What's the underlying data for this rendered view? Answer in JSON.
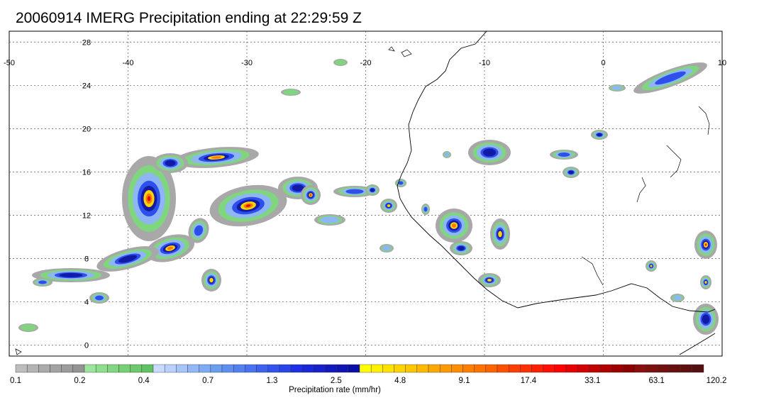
{
  "title": "20060914 IMERG Precipitation ending at 22:29:59 Z",
  "map": {
    "lon_ticks": [
      "-50",
      "-40",
      "-30",
      "-20",
      "-10",
      "0",
      "10"
    ],
    "lat_ticks": [
      "28",
      "24",
      "20",
      "16",
      "12",
      "8",
      "4",
      "0"
    ],
    "lon_values": [
      -50,
      -40,
      -30,
      -20,
      -10,
      0,
      10
    ],
    "lat_values": [
      28,
      24,
      20,
      16,
      12,
      8,
      4,
      0
    ],
    "lon_range": [
      -50,
      10
    ],
    "lat_range": [
      -1,
      29
    ],
    "grid": "dotted"
  },
  "colorbar": {
    "label": "Precipitation rate (mm/hr)",
    "tick_labels": [
      "0.1",
      "0.2",
      "0.4",
      "0.7",
      "1.3",
      "2.5",
      "4.8",
      "9.1",
      "17.4",
      "33.1",
      "63.1",
      "120.2"
    ],
    "groups": [
      {
        "colors": [
          "#bdbdbd",
          "#b4b4b4",
          "#ababab",
          "#a3a3a3",
          "#9c9c9c",
          "#949494"
        ]
      },
      {
        "colors": [
          "#9ce59c",
          "#8ddf8d",
          "#82d882",
          "#76d176",
          "#6cc96c",
          "#62c162"
        ]
      },
      {
        "colors": [
          "#c9dcff",
          "#b9d1ff",
          "#a6c5fb",
          "#93b8f7",
          "#7eabf3",
          "#6a9ef0"
        ]
      },
      {
        "colors": [
          "#5e8ff0",
          "#5381f0",
          "#4872ef",
          "#3d63ee",
          "#3254ec",
          "#2845ea"
        ]
      },
      {
        "colors": [
          "#1e30e6",
          "#1a27d9",
          "#1620cc",
          "#121abf",
          "#0f14b3",
          "#0b0fa6"
        ]
      },
      {
        "colors": [
          "#ffff00",
          "#fff100",
          "#ffe200",
          "#ffd400",
          "#ffc700",
          "#ffb900"
        ]
      },
      {
        "colors": [
          "#ffa800",
          "#ff9a00",
          "#ff8d00",
          "#ff7f00",
          "#ff7100",
          "#ff6200"
        ]
      },
      {
        "colors": [
          "#ff4f00",
          "#ff3f00",
          "#ff3000",
          "#ff2000",
          "#ff1000",
          "#ff0000"
        ]
      },
      {
        "colors": [
          "#e60000",
          "#d40000",
          "#c20000",
          "#b00000",
          "#9e0000",
          "#8c0000"
        ]
      },
      {
        "colors": [
          "#8a0f0f",
          "#7e1010",
          "#731010",
          "#681010",
          "#5e1010",
          "#541010"
        ]
      }
    ]
  }
}
